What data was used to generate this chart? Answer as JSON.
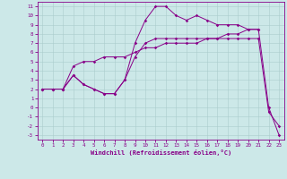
{
  "title": "",
  "xlabel": "Windchill (Refroidissement éolien,°C)",
  "background_color": "#cce8e8",
  "line_color": "#880088",
  "grid_color": "#aacccc",
  "xlim": [
    -0.5,
    23.5
  ],
  "ylim": [
    -3.5,
    11.5
  ],
  "xticks": [
    0,
    1,
    2,
    3,
    4,
    5,
    6,
    7,
    8,
    9,
    10,
    11,
    12,
    13,
    14,
    15,
    16,
    17,
    18,
    19,
    20,
    21,
    22,
    23
  ],
  "yticks": [
    -3,
    -2,
    -1,
    0,
    1,
    2,
    3,
    4,
    5,
    6,
    7,
    8,
    9,
    10,
    11
  ],
  "line1_x": [
    0,
    1,
    2,
    3,
    4,
    5,
    6,
    7,
    8,
    9,
    10,
    11,
    12,
    13,
    14,
    15,
    16,
    17,
    18,
    19,
    20,
    21,
    22,
    23
  ],
  "line1_y": [
    2,
    2,
    2,
    3.5,
    2.5,
    2,
    1.5,
    1.5,
    3,
    7,
    9.5,
    11,
    11,
    10,
    9.5,
    10,
    9.5,
    9,
    9,
    9,
    8.5,
    8.5,
    0,
    -3
  ],
  "line2_x": [
    0,
    1,
    2,
    3,
    4,
    5,
    6,
    7,
    8,
    9,
    10,
    11,
    12,
    13,
    14,
    15,
    16,
    17,
    18,
    19,
    20,
    21,
    22,
    23
  ],
  "line2_y": [
    2,
    2,
    2,
    3.5,
    2.5,
    2,
    1.5,
    1.5,
    3,
    5.5,
    7,
    7.5,
    7.5,
    7.5,
    7.5,
    7.5,
    7.5,
    7.5,
    7.5,
    7.5,
    7.5,
    7.5,
    -0.5,
    -2
  ],
  "line3_x": [
    0,
    1,
    2,
    3,
    4,
    5,
    6,
    7,
    8,
    9,
    10,
    11,
    12,
    13,
    14,
    15,
    16,
    17,
    18,
    19,
    20,
    21
  ],
  "line3_y": [
    2,
    2,
    2,
    4.5,
    5,
    5,
    5.5,
    5.5,
    5.5,
    6,
    6.5,
    6.5,
    7,
    7,
    7,
    7,
    7.5,
    7.5,
    8,
    8,
    8.5,
    8.5
  ],
  "marker": "D",
  "markersize": 1.8,
  "linewidth": 0.7,
  "tick_fontsize": 4.2,
  "xlabel_fontsize": 5.0
}
